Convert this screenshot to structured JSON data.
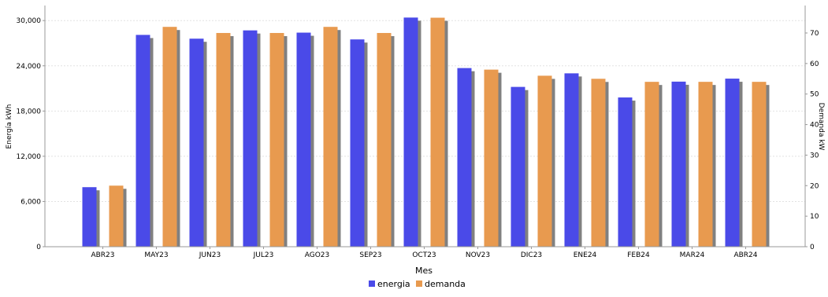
{
  "colors": {
    "energia": "#4a4ae8",
    "demanda": "#e89a4f",
    "shadow": "#808080",
    "grid": "#e2e2e2",
    "axis": "#999999"
  },
  "chart_data": {
    "type": "bar",
    "categories": [
      "ABR23",
      "MAY23",
      "JUN23",
      "JUL23",
      "AGO23",
      "SEP23",
      "OCT23",
      "NOV23",
      "DIC23",
      "ENE24",
      "FEB24",
      "MAR24",
      "ABR24"
    ],
    "series": [
      {
        "name": "energia",
        "axis": "left",
        "values": [
          7900,
          28100,
          27600,
          28700,
          28400,
          27500,
          30400,
          23700,
          21200,
          23000,
          19800,
          21900,
          22300
        ]
      },
      {
        "name": "demanda",
        "axis": "right",
        "values": [
          20,
          72,
          70,
          70,
          72,
          70,
          75,
          58,
          56,
          55,
          54,
          54,
          54
        ]
      }
    ],
    "xlabel": "Mes",
    "ylabel": "Energía kWh",
    "y2label": "Demanda kW",
    "ylim": [
      0,
      32000
    ],
    "y2lim": [
      0,
      79
    ],
    "yticks": [
      "0",
      "6,000",
      "12,000",
      "18,000",
      "24,000",
      "30,000"
    ],
    "y2ticks": [
      "0",
      "10",
      "20",
      "30",
      "40",
      "50",
      "60",
      "70"
    ],
    "grid": true,
    "legend": "bottom-center"
  }
}
